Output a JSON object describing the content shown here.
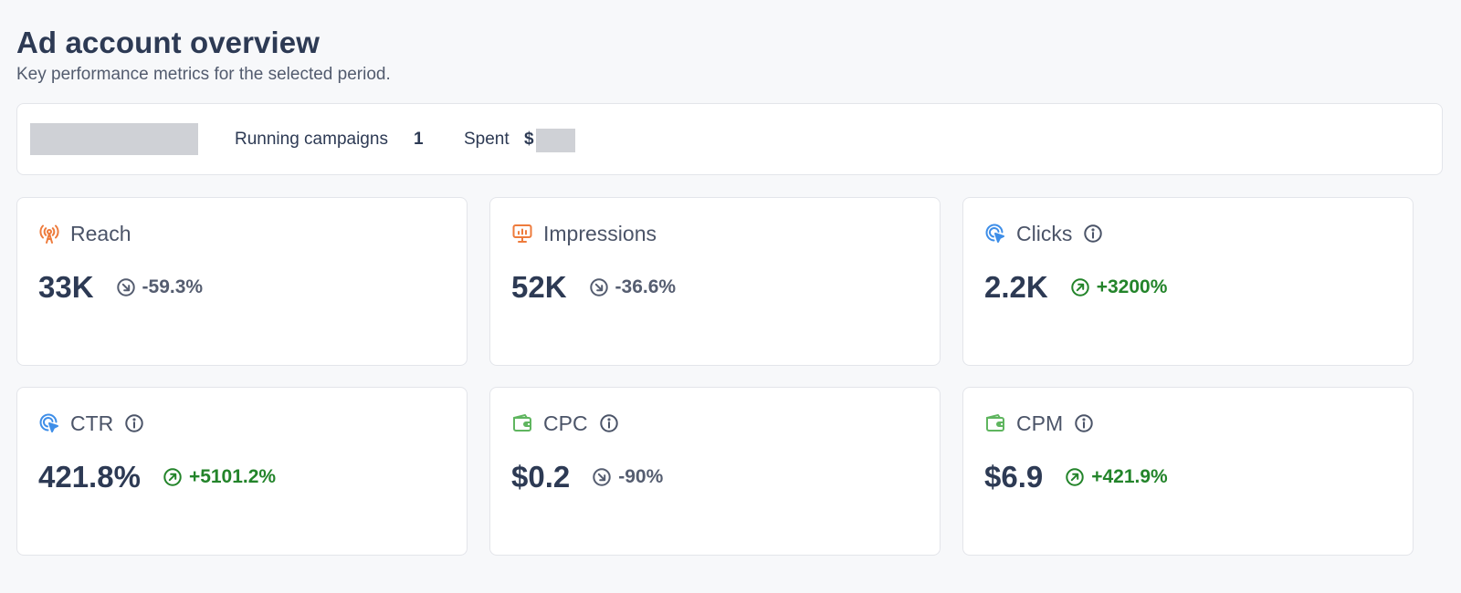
{
  "header": {
    "title": "Ad account overview",
    "subtitle": "Key performance metrics for the selected period."
  },
  "summary": {
    "running_label": "Running campaigns",
    "running_count": "1",
    "spent_label": "Spent",
    "spent_currency": "$"
  },
  "colors": {
    "orange_icon": "#ee7b3c",
    "blue_icon": "#3e8ee8",
    "green_icon": "#5fb55f",
    "trend_up": "#23842a",
    "trend_down": "#555d70"
  },
  "metrics": [
    {
      "label": "Reach",
      "icon": "broadcast-icon",
      "value": "33K",
      "change": "-59.3%",
      "direction": "down",
      "info": false
    },
    {
      "label": "Impressions",
      "icon": "presentation-chart-icon",
      "value": "52K",
      "change": "-36.6%",
      "direction": "down",
      "info": false
    },
    {
      "label": "Clicks",
      "icon": "cursor-click-icon",
      "value": "2.2K",
      "change": "+3200%",
      "direction": "up",
      "info": true
    },
    {
      "label": "CTR",
      "icon": "cursor-click-icon",
      "value": "421.8%",
      "change": "+5101.2%",
      "direction": "up",
      "info": true
    },
    {
      "label": "CPC",
      "icon": "wallet-icon",
      "value": "$0.2",
      "change": "-90%",
      "direction": "down",
      "info": true
    },
    {
      "label": "CPM",
      "icon": "wallet-icon",
      "value": "$6.9",
      "change": "+421.9%",
      "direction": "up",
      "info": true
    }
  ]
}
